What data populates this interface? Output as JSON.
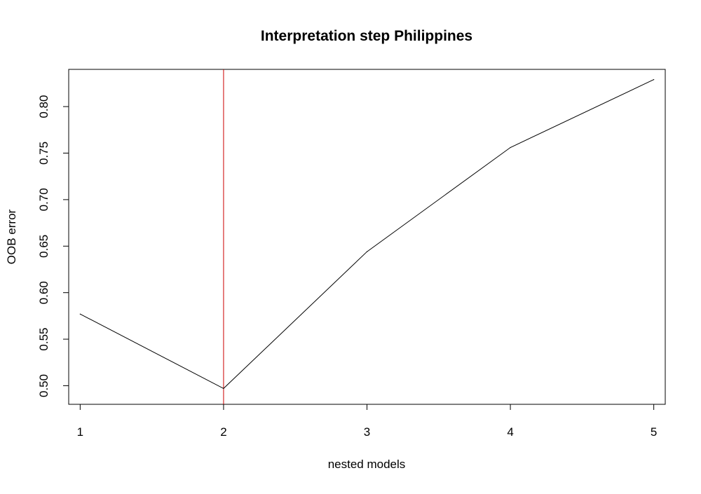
{
  "chart_data": {
    "type": "line",
    "title": "Interpretation step Philippines",
    "xlabel": "nested models",
    "ylabel": "OOB error",
    "x": [
      1,
      2,
      3,
      4,
      5
    ],
    "series": [
      {
        "values": [
          0.577,
          0.497,
          0.644,
          0.756,
          0.829
        ],
        "color": "#000000"
      }
    ],
    "xlim": [
      0.92,
      5.08
    ],
    "ylim": [
      0.48,
      0.84
    ],
    "xticks": [
      1,
      2,
      3,
      4,
      5
    ],
    "xtick_labels": [
      "1",
      "2",
      "3",
      "4",
      "5"
    ],
    "yticks": [
      0.5,
      0.55,
      0.6,
      0.65,
      0.7,
      0.75,
      0.8
    ],
    "ytick_labels": [
      "0.50",
      "0.55",
      "0.60",
      "0.65",
      "0.70",
      "0.75",
      "0.80"
    ],
    "reference_line": {
      "orientation": "vertical",
      "x": 2,
      "color": "#cc0000"
    },
    "grid": false,
    "legend": "none"
  }
}
